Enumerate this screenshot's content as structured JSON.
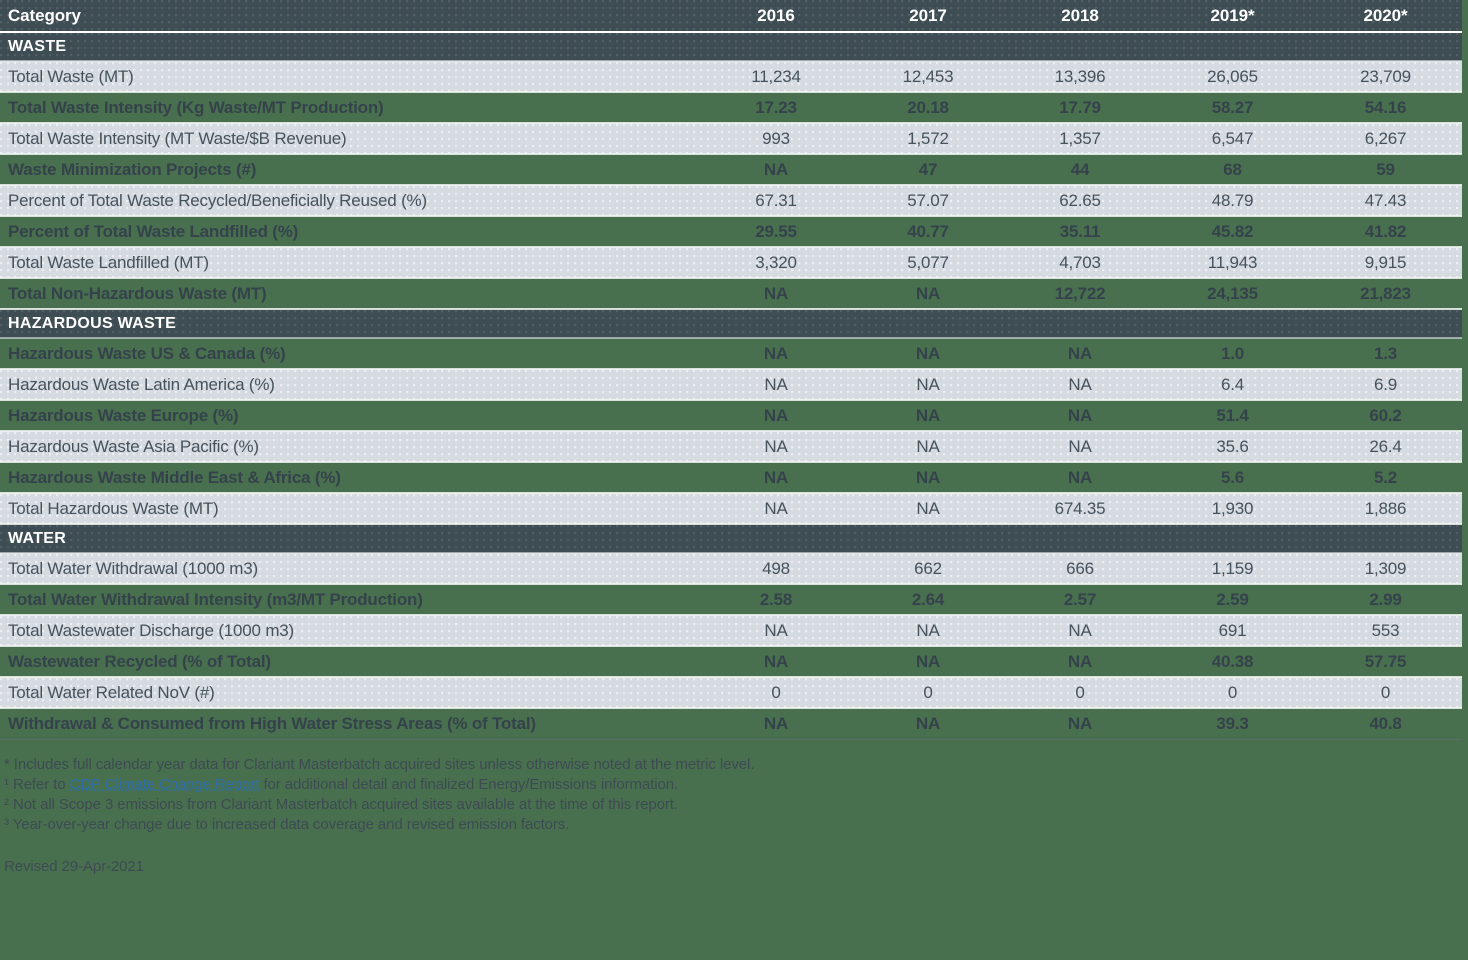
{
  "colors": {
    "page-bg": "#48704f",
    "dark-bg": "#3e4d54",
    "light-bg": "#d6dbe2",
    "light-text": "#46525b",
    "green-text": "#35424b",
    "head-text": "#ffffff",
    "link-color": "#2d6fad",
    "foot-text": "#3e4a52"
  },
  "table": {
    "header": {
      "category_label": "Category",
      "years": [
        "2016",
        "2017",
        "2018",
        "2019*",
        "2020*"
      ]
    },
    "sections": [
      {
        "title": "WASTE",
        "rows": [
          {
            "label": "Total Waste (MT)",
            "variant": "light",
            "values": [
              "11,234",
              "12,453",
              "13,396",
              "26,065",
              "23,709"
            ]
          },
          {
            "label": "Total Waste Intensity (Kg Waste/MT Production)",
            "variant": "green",
            "values": [
              "17.23",
              "20.18",
              "17.79",
              "58.27",
              "54.16"
            ]
          },
          {
            "label": "Total Waste Intensity (MT Waste/$B Revenue)",
            "variant": "light",
            "values": [
              "993",
              "1,572",
              "1,357",
              "6,547",
              "6,267"
            ]
          },
          {
            "label": "Waste Minimization Projects (#)",
            "variant": "green",
            "values": [
              "NA",
              "47",
              "44",
              "68",
              "59"
            ]
          },
          {
            "label": "Percent of Total Waste Recycled/Beneficially Reused (%)",
            "variant": "light",
            "values": [
              "67.31",
              "57.07",
              "62.65",
              "48.79",
              "47.43"
            ]
          },
          {
            "label": "Percent of Total Waste Landfilled (%)",
            "variant": "green",
            "values": [
              "29.55",
              "40.77",
              "35.11",
              "45.82",
              "41.82"
            ]
          },
          {
            "label": "Total Waste Landfilled (MT)",
            "variant": "light",
            "values": [
              "3,320",
              "5,077",
              "4,703",
              "11,943",
              "9,915"
            ]
          },
          {
            "label": "Total Non-Hazardous Waste (MT)",
            "variant": "green",
            "values": [
              "NA",
              "NA",
              "12,722",
              "24,135",
              "21,823"
            ]
          }
        ]
      },
      {
        "title": "HAZARDOUS WASTE",
        "rows": [
          {
            "label": "Hazardous Waste US & Canada (%)",
            "variant": "green",
            "values": [
              "NA",
              "NA",
              "NA",
              "1.0",
              "1.3"
            ]
          },
          {
            "label": "Hazardous Waste Latin America (%)",
            "variant": "light",
            "values": [
              "NA",
              "NA",
              "NA",
              "6.4",
              "6.9"
            ]
          },
          {
            "label": "Hazardous Waste Europe (%)",
            "variant": "green",
            "values": [
              "NA",
              "NA",
              "NA",
              "51.4",
              "60.2"
            ]
          },
          {
            "label": "Hazardous Waste Asia Pacific (%)",
            "variant": "light",
            "values": [
              "NA",
              "NA",
              "NA",
              "35.6",
              "26.4"
            ]
          },
          {
            "label": "Hazardous Waste Middle East & Africa (%)",
            "variant": "green",
            "values": [
              "NA",
              "NA",
              "NA",
              "5.6",
              "5.2"
            ]
          },
          {
            "label": "Total Hazardous Waste (MT)",
            "variant": "light",
            "values": [
              "NA",
              "NA",
              "674.35",
              "1,930",
              "1,886"
            ]
          }
        ]
      },
      {
        "title": "WATER",
        "rows": [
          {
            "label": "Total Water Withdrawal (1000 m3)",
            "variant": "light",
            "values": [
              "498",
              "662",
              "666",
              "1,159",
              "1,309"
            ]
          },
          {
            "label": "Total Water Withdrawal Intensity (m3/MT Production)",
            "variant": "green",
            "values": [
              "2.58",
              "2.64",
              "2.57",
              "2.59",
              "2.99"
            ]
          },
          {
            "label": "Total Wastewater Discharge (1000 m3)",
            "variant": "light",
            "values": [
              "NA",
              "NA",
              "NA",
              "691",
              "553"
            ]
          },
          {
            "label": "Wastewater Recycled (% of Total)",
            "variant": "green",
            "values": [
              "NA",
              "NA",
              "NA",
              "40.38",
              "57.75"
            ]
          },
          {
            "label": "Total Water Related NoV (#)",
            "variant": "light",
            "values": [
              "0",
              "0",
              "0",
              "0",
              "0"
            ]
          },
          {
            "label": "Withdrawal & Consumed from High Water Stress Areas (% of Total)",
            "variant": "green",
            "values": [
              "NA",
              "NA",
              "NA",
              "39.3",
              "40.8"
            ]
          }
        ]
      }
    ]
  },
  "footnotes": {
    "line1": "* Includes full calendar year data for Clariant Masterbatch acquired sites unless otherwise noted at the metric level.",
    "line2_prefix": "¹ Refer to ",
    "line2_link": "CDP Climate Change Report",
    "line2_suffix": " for additional detail and finalized Energy/Emissions information.",
    "line3": "² Not all Scope 3 emissions from Clariant Masterbatch acquired sites available at the time of this report.",
    "line4": "³ Year-over-year change due to increased data coverage and revised emission factors.",
    "revised": "Revised 29-Apr-2021"
  }
}
